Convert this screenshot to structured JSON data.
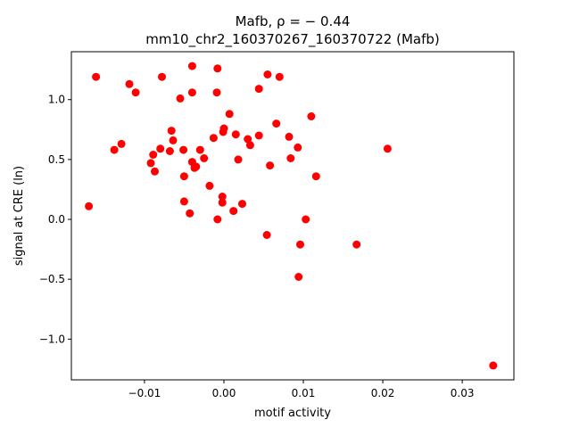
{
  "chart_data": {
    "type": "scatter",
    "title_line1": "Mafb, ρ = − 0.44",
    "title_line2": "mm10_chr2_160370267_160370722 (Mafb)",
    "xlabel": "motif activity",
    "ylabel": "signal at CRE (ln)",
    "xlim": [
      -0.0192,
      0.0365
    ],
    "ylim": [
      -1.34,
      1.4
    ],
    "xticks": [
      {
        "value": -0.01,
        "label": "−0.01"
      },
      {
        "value": 0.0,
        "label": "0.00"
      },
      {
        "value": 0.01,
        "label": "0.01"
      },
      {
        "value": 0.02,
        "label": "0.02"
      },
      {
        "value": 0.03,
        "label": "0.03"
      }
    ],
    "yticks": [
      {
        "value": -1.0,
        "label": "−1.0"
      },
      {
        "value": -0.5,
        "label": "−0.5"
      },
      {
        "value": 0.0,
        "label": "0.0"
      },
      {
        "value": 0.5,
        "label": "0.5"
      },
      {
        "value": 1.0,
        "label": "1.0"
      }
    ],
    "grid": false,
    "marker_color": "#ff0000",
    "points": [
      {
        "x": -0.017,
        "y": 0.11
      },
      {
        "x": -0.0161,
        "y": 1.19
      },
      {
        "x": -0.0138,
        "y": 0.58
      },
      {
        "x": -0.0129,
        "y": 0.63
      },
      {
        "x": -0.0119,
        "y": 1.13
      },
      {
        "x": -0.0111,
        "y": 1.06
      },
      {
        "x": -0.0092,
        "y": 0.47
      },
      {
        "x": -0.0089,
        "y": 0.54
      },
      {
        "x": -0.0087,
        "y": 0.4
      },
      {
        "x": -0.008,
        "y": 0.59
      },
      {
        "x": -0.0078,
        "y": 1.19
      },
      {
        "x": -0.0068,
        "y": 0.57
      },
      {
        "x": -0.0066,
        "y": 0.74
      },
      {
        "x": -0.0064,
        "y": 0.66
      },
      {
        "x": -0.0055,
        "y": 1.01
      },
      {
        "x": -0.0051,
        "y": 0.58
      },
      {
        "x": -0.005,
        "y": 0.36
      },
      {
        "x": -0.005,
        "y": 0.15
      },
      {
        "x": -0.0043,
        "y": 0.05
      },
      {
        "x": -0.004,
        "y": 0.48
      },
      {
        "x": -0.004,
        "y": 1.06
      },
      {
        "x": -0.004,
        "y": 1.28
      },
      {
        "x": -0.0037,
        "y": 0.43
      },
      {
        "x": -0.0035,
        "y": 0.44
      },
      {
        "x": -0.003,
        "y": 0.58
      },
      {
        "x": -0.0025,
        "y": 0.51
      },
      {
        "x": -0.0018,
        "y": 0.28
      },
      {
        "x": -0.0013,
        "y": 0.68
      },
      {
        "x": -0.0009,
        "y": 1.06
      },
      {
        "x": -0.0008,
        "y": 1.26
      },
      {
        "x": -0.0008,
        "y": 0.0
      },
      {
        "x": -0.0002,
        "y": 0.14
      },
      {
        "x": -0.0002,
        "y": 0.19
      },
      {
        "x": -0.0001,
        "y": 0.73
      },
      {
        "x": 0.0,
        "y": 0.76
      },
      {
        "x": 0.0007,
        "y": 0.88
      },
      {
        "x": 0.0012,
        "y": 0.07
      },
      {
        "x": 0.0015,
        "y": 0.71
      },
      {
        "x": 0.0018,
        "y": 0.5
      },
      {
        "x": 0.0023,
        "y": 0.13
      },
      {
        "x": 0.003,
        "y": 0.67
      },
      {
        "x": 0.0033,
        "y": 0.62
      },
      {
        "x": 0.0044,
        "y": 1.09
      },
      {
        "x": 0.0044,
        "y": 0.7
      },
      {
        "x": 0.0054,
        "y": -0.13
      },
      {
        "x": 0.0055,
        "y": 1.21
      },
      {
        "x": 0.0058,
        "y": 0.45
      },
      {
        "x": 0.0066,
        "y": 0.8
      },
      {
        "x": 0.007,
        "y": 1.19
      },
      {
        "x": 0.0082,
        "y": 0.69
      },
      {
        "x": 0.0084,
        "y": 0.51
      },
      {
        "x": 0.0093,
        "y": 0.6
      },
      {
        "x": 0.0094,
        "y": -0.48
      },
      {
        "x": 0.0096,
        "y": -0.21
      },
      {
        "x": 0.0103,
        "y": 0.0
      },
      {
        "x": 0.011,
        "y": 0.86
      },
      {
        "x": 0.0116,
        "y": 0.36
      },
      {
        "x": 0.0167,
        "y": -0.21
      },
      {
        "x": 0.0206,
        "y": 0.59
      },
      {
        "x": 0.0339,
        "y": -1.22
      }
    ]
  }
}
